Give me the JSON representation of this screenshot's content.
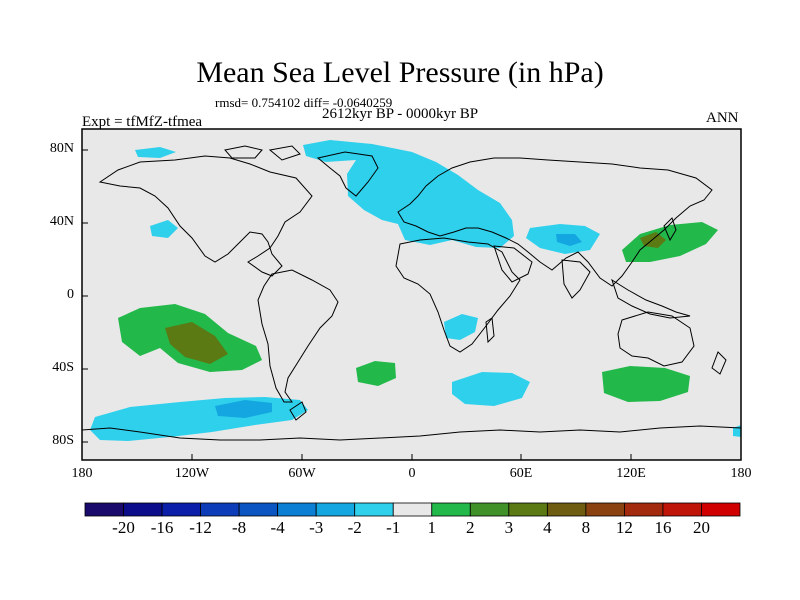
{
  "title": "Mean Sea Level Pressure (in hPa)",
  "stats": "rmsd= 0.754102 diff= -0.0640259",
  "period": "2612kyr BP - 0000kyr BP",
  "experiment": "Expt = tfMfZ-tfmea",
  "season": "ANN",
  "lat_ticks": [
    "80N",
    "40N",
    "0",
    "40S",
    "80S"
  ],
  "lon_ticks": [
    "180",
    "120W",
    "60W",
    "0",
    "60E",
    "120E",
    "180"
  ],
  "colorbar": {
    "colors": [
      "#1a0a6b",
      "#0b0d8a",
      "#0b1fa8",
      "#0c3cb8",
      "#0b55c2",
      "#0a7fd4",
      "#14a6e0",
      "#2fd0ec",
      "#e8e8e8",
      "#22b84a",
      "#3f9128",
      "#5b7a14",
      "#6e5c10",
      "#8a4210",
      "#a32a0c",
      "#bf1508",
      "#d10000"
    ],
    "labels": [
      "-20",
      "-16",
      "-12",
      "-8",
      "-4",
      "-3",
      "-2",
      "-1",
      "1",
      "2",
      "3",
      "4",
      "8",
      "12",
      "16",
      "20"
    ]
  },
  "anomaly_colors": {
    "neg_weak": "#2fd0ec",
    "neg_mid": "#14a6e0",
    "pos_weak": "#22b84a",
    "pos_mid": "#3f9128",
    "pos_strong": "#5b7a14",
    "background": "#e8e8e8"
  }
}
